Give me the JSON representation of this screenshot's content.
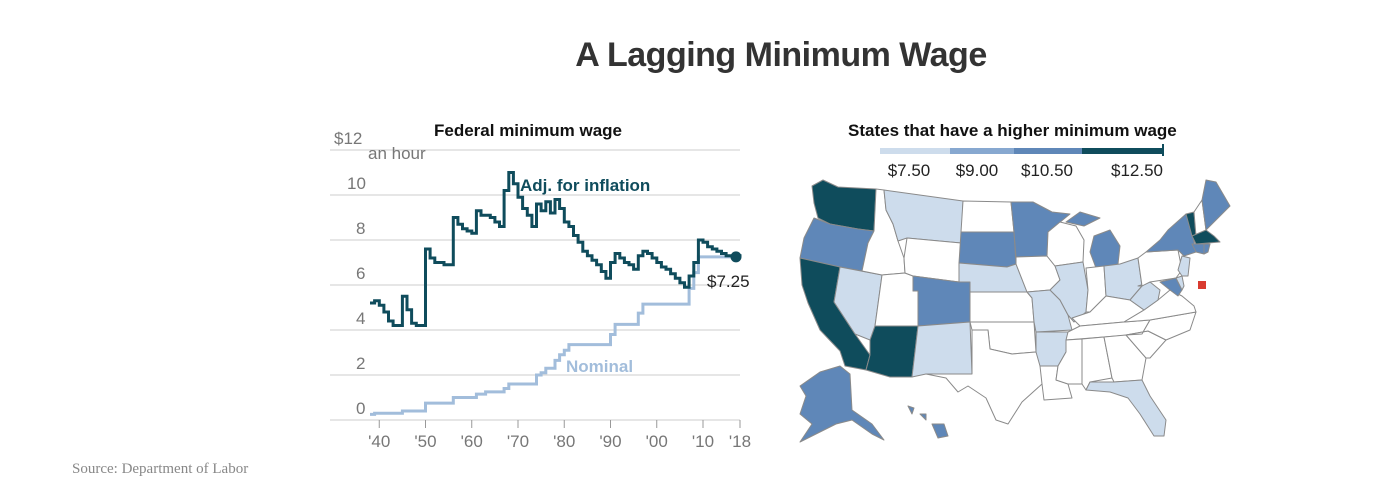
{
  "title": "A Lagging Minimum Wage",
  "source": "Source: Department of Labor",
  "colors": {
    "adjusted": "#0f4c5c",
    "nominal": "#a2bddb",
    "grid": "#cccccc",
    "tier1": "#cddcec",
    "tier2": "#87a8d0",
    "tier3": "#5f87b8",
    "tier4": "#0f4c5c",
    "baseline": "#ffffff",
    "state_border": "#8a8a8a",
    "dc_marker": "#d93b30"
  },
  "chart_data": [
    {
      "type": "line",
      "title": "Federal minimum wage",
      "ylabel": "an hour",
      "ylim": [
        0,
        12
      ],
      "xlim": [
        1938,
        2018
      ],
      "y_ticks": [
        0,
        2,
        4,
        6,
        8,
        10,
        12
      ],
      "y_tick_labels": [
        "0",
        "2",
        "4",
        "6",
        "8",
        "10",
        "$12"
      ],
      "x_ticks": [
        1940,
        1950,
        1960,
        1970,
        1980,
        1990,
        2000,
        2010,
        2018
      ],
      "x_tick_labels": [
        "'40",
        "'50",
        "'60",
        "'70",
        "'80",
        "'90",
        "'00",
        "'10",
        "'18"
      ],
      "grid": true,
      "endpoint_label": "$7.25",
      "series": [
        {
          "name": "Adj. for inflation",
          "step": true,
          "x": [
            1938,
            1939,
            1940,
            1941,
            1942,
            1943,
            1944,
            1945,
            1946,
            1947,
            1948,
            1949,
            1950,
            1951,
            1952,
            1953,
            1954,
            1955,
            1956,
            1957,
            1958,
            1959,
            1960,
            1961,
            1962,
            1963,
            1964,
            1965,
            1966,
            1967,
            1968,
            1969,
            1970,
            1971,
            1972,
            1973,
            1974,
            1975,
            1976,
            1977,
            1978,
            1979,
            1980,
            1981,
            1982,
            1983,
            1984,
            1985,
            1986,
            1987,
            1988,
            1989,
            1990,
            1991,
            1992,
            1993,
            1994,
            1995,
            1996,
            1997,
            1998,
            1999,
            2000,
            2001,
            2002,
            2003,
            2004,
            2005,
            2006,
            2007,
            2008,
            2009,
            2010,
            2011,
            2012,
            2013,
            2014,
            2015,
            2016,
            2017,
            2018
          ],
          "values": [
            5.2,
            5.3,
            5.1,
            4.8,
            4.4,
            4.2,
            4.2,
            5.5,
            4.9,
            4.3,
            4.2,
            4.2,
            7.6,
            7.2,
            7.0,
            7.0,
            6.9,
            6.9,
            9.0,
            8.7,
            8.5,
            8.4,
            8.3,
            9.3,
            9.1,
            9.1,
            9.0,
            8.8,
            8.6,
            10.2,
            11.0,
            10.5,
            9.9,
            9.4,
            9.1,
            8.6,
            9.6,
            9.3,
            9.7,
            9.2,
            9.8,
            9.4,
            8.8,
            8.6,
            8.2,
            7.9,
            7.5,
            7.3,
            7.1,
            6.9,
            6.6,
            6.3,
            7.0,
            7.4,
            7.2,
            7.0,
            6.9,
            6.7,
            7.3,
            7.5,
            7.4,
            7.2,
            7.0,
            6.8,
            6.7,
            6.5,
            6.3,
            6.1,
            5.9,
            6.4,
            7.0,
            8.0,
            7.9,
            7.7,
            7.6,
            7.5,
            7.4,
            7.3,
            7.3,
            7.3,
            7.25
          ]
        },
        {
          "name": "Nominal",
          "step": true,
          "x": [
            1938,
            1939,
            1945,
            1950,
            1956,
            1961,
            1963,
            1967,
            1968,
            1974,
            1975,
            1976,
            1978,
            1979,
            1980,
            1981,
            1990,
            1991,
            1996,
            1997,
            2007,
            2008,
            2009,
            2018
          ],
          "values": [
            0.25,
            0.3,
            0.4,
            0.75,
            1.0,
            1.15,
            1.25,
            1.4,
            1.6,
            2.0,
            2.1,
            2.3,
            2.65,
            2.9,
            3.1,
            3.35,
            3.8,
            4.25,
            4.75,
            5.15,
            5.85,
            6.55,
            7.25,
            7.25
          ]
        }
      ]
    },
    {
      "type": "table",
      "title": "States that have a higher minimum wage",
      "legend": [
        {
          "label": "$7.50",
          "value": 7.5
        },
        {
          "label": "$9.00",
          "value": 9.0
        },
        {
          "label": "$10.50",
          "value": 10.5
        },
        {
          "label": "$12.50",
          "value": 12.5
        }
      ],
      "legend_colors": [
        "tier1",
        "tier2",
        "tier3",
        "tier4"
      ],
      "states": {
        "WA": "tier4",
        "OR": "tier3",
        "CA": "tier4",
        "NV": "tier1",
        "AZ": "tier4",
        "MT": "tier1",
        "CO": "tier3",
        "NM": "tier1",
        "SD": "tier3",
        "NE": "tier1",
        "MN": "tier3",
        "MO": "tier1",
        "AR": "tier1",
        "IL": "tier1",
        "MI": "tier3",
        "OH": "tier1",
        "WV": "tier1",
        "NY": "tier3",
        "VT": "tier4",
        "ME": "tier3",
        "MA": "tier4",
        "RI": "tier3",
        "CT": "tier3",
        "NJ": "tier1",
        "MD": "tier3",
        "DE": "tier1",
        "FL": "tier1",
        "AK": "tier3",
        "HI": "tier3",
        "DC": "dc_marker"
      }
    }
  ]
}
